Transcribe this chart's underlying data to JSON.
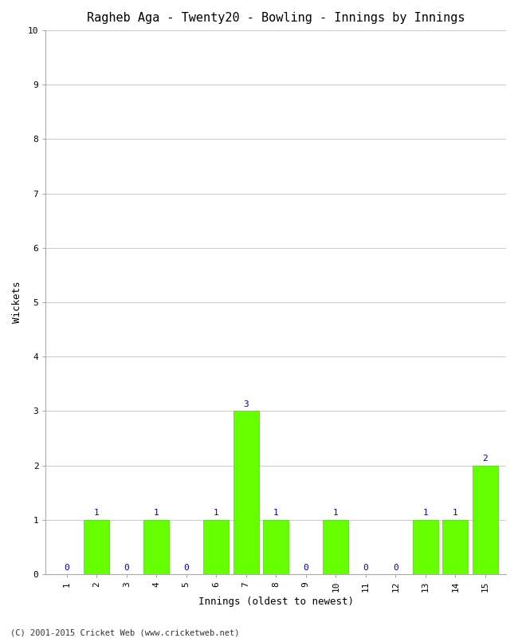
{
  "title": "Ragheb Aga - Twenty20 - Bowling - Innings by Innings",
  "xlabel": "Innings (oldest to newest)",
  "ylabel": "Wickets",
  "innings": [
    1,
    2,
    3,
    4,
    5,
    6,
    7,
    8,
    9,
    10,
    11,
    12,
    13,
    14,
    15
  ],
  "wickets": [
    0,
    1,
    0,
    1,
    0,
    1,
    3,
    1,
    0,
    1,
    0,
    0,
    1,
    1,
    2
  ],
  "bar_color": "#66ff00",
  "bar_edge_color": "#44dd00",
  "ylim": [
    0,
    10
  ],
  "yticks": [
    0,
    1,
    2,
    3,
    4,
    5,
    6,
    7,
    8,
    9,
    10
  ],
  "background_color": "#ffffff",
  "grid_color": "#cccccc",
  "title_fontsize": 11,
  "label_fontsize": 9,
  "tick_fontsize": 8,
  "annotation_color": "#0000cc",
  "footer": "(C) 2001-2015 Cricket Web (www.cricketweb.net)"
}
